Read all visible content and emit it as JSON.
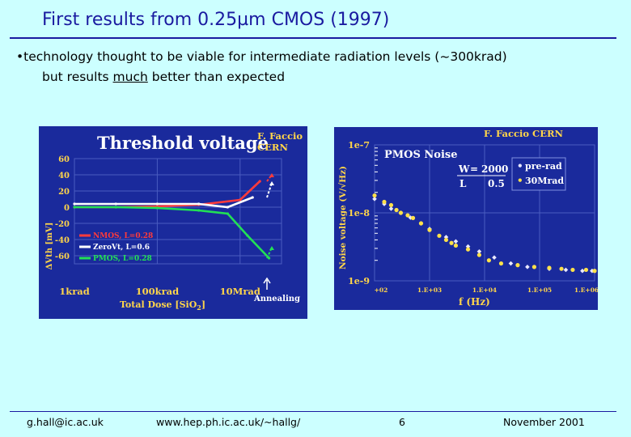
{
  "slide": {
    "title": "First results from 0.25µm CMOS (1997)",
    "bullet_symbol": "•",
    "bullet_line1": "technology thought to be viable for intermediate radiation levels (~300krad)",
    "bullet_line2_pre": "but results ",
    "bullet_line2_emph": "much",
    "bullet_line2_post": " better than expected"
  },
  "footer": {
    "email": "g.hall@ic.ac.uk",
    "url": "www.hep.ph.ic.ac.uk/~hallg/",
    "page": "6",
    "date": "November 2001"
  },
  "colors": {
    "title": "#1a1aa0",
    "background": "#ccffff",
    "figure_bg": "#1a2a9c",
    "author": "#ffd54a"
  },
  "chart_data": [
    {
      "type": "line",
      "title": "Threshold voltage",
      "author": "F. Faccio",
      "author2": "CERN",
      "ylabel": "ΔVth [mV]",
      "xlabel": "Total Dose [SiO2]",
      "xlabel_main": "Total Dose [SiO",
      "xlabel_sub": "2",
      "xlabel_close": "]",
      "yticks": [
        "60",
        "40",
        "20",
        "0",
        "-20",
        "-40",
        "-60"
      ],
      "xticks": [
        "1krad",
        "100krad",
        "10Mrad"
      ],
      "annealing_label": "Annealing",
      "ylim": [
        -70,
        60
      ],
      "x_log_range_krad": [
        1,
        100000
      ],
      "legend": [
        "NMOS, L=0.28",
        "ZeroVt, L=0.6",
        "PMOS, L=0.28"
      ],
      "series": [
        {
          "name": "NMOS, L=0.28",
          "color": "#ff3b3b",
          "x": [
            1,
            10,
            100,
            1000,
            10000,
            30000
          ],
          "y": [
            0,
            0,
            1,
            3,
            9,
            32
          ]
        },
        {
          "name": "ZeroVt, L=0.6",
          "color": "#ffffff",
          "x": [
            1,
            10,
            100,
            1000,
            5000,
            20000
          ],
          "y": [
            4,
            4,
            4,
            4,
            0,
            12
          ]
        },
        {
          "name": "PMOS, L=0.28",
          "color": "#22e055",
          "x": [
            1,
            10,
            100,
            1000,
            5000,
            15000,
            50000
          ],
          "y": [
            0,
            0,
            -1,
            -4,
            -8,
            -35,
            -63
          ]
        }
      ],
      "annealing": [
        {
          "name": "NMOS",
          "color": "#ff3b3b",
          "from": 32,
          "to": 40
        },
        {
          "name": "ZeroVt",
          "color": "#ffffff",
          "from": 12,
          "to": 30
        },
        {
          "name": "PMOS",
          "color": "#22e055",
          "from": -63,
          "to": -50
        }
      ]
    },
    {
      "type": "scatter",
      "title": "PMOS Noise",
      "author": "F. Faccio  CERN",
      "ylabel": "Noise voltage (V/√Hz)",
      "xlabel": "f (Hz)",
      "yticks": [
        "1e-7",
        "1e-8",
        "1e-9"
      ],
      "xticks": [
        "+02",
        "1.E+03",
        "1.E+04",
        "1.E+05",
        "1.E+06"
      ],
      "ylim_log10": [
        -9,
        -7
      ],
      "xlim_log10": [
        2,
        6
      ],
      "param_w_label": "W",
      "param_w_value": "2000",
      "param_l_label": "L",
      "param_l_value": "0.5",
      "legend": [
        "pre-rad",
        "30Mrad"
      ],
      "series": [
        {
          "name": "pre-rad",
          "color": "#e8e8ff",
          "x": [
            100,
            150,
            200,
            300,
            450,
            700,
            1000,
            2000,
            3000,
            5000,
            8000,
            15000,
            30000,
            60000,
            150000,
            300000,
            600000,
            900000
          ],
          "y": [
            1.6e-08,
            1.35e-08,
            1.15e-08,
            1e-08,
            8.5e-09,
            7e-09,
            5.8e-09,
            4.4e-09,
            3.8e-09,
            3.2e-09,
            2.7e-09,
            2.2e-09,
            1.8e-09,
            1.6e-09,
            1.5e-09,
            1.45e-09,
            1.4e-09,
            1.4e-09
          ]
        },
        {
          "name": "30Mrad",
          "color": "#ffe14a",
          "x": [
            100,
            150,
            200,
            250,
            300,
            400,
            500,
            700,
            1000,
            1500,
            2000,
            2500,
            3000,
            5000,
            8000,
            12000,
            20000,
            40000,
            80000,
            150000,
            250000,
            400000,
            700000,
            1000000
          ],
          "y": [
            1.8e-08,
            1.45e-08,
            1.3e-08,
            1.1e-08,
            1e-08,
            9.2e-09,
            8.4e-09,
            7e-09,
            5.6e-09,
            4.6e-09,
            4e-09,
            3.6e-09,
            3.3e-09,
            2.9e-09,
            2.4e-09,
            2e-09,
            1.8e-09,
            1.7e-09,
            1.6e-09,
            1.55e-09,
            1.5e-09,
            1.45e-09,
            1.45e-09,
            1.4e-09
          ]
        }
      ]
    }
  ]
}
